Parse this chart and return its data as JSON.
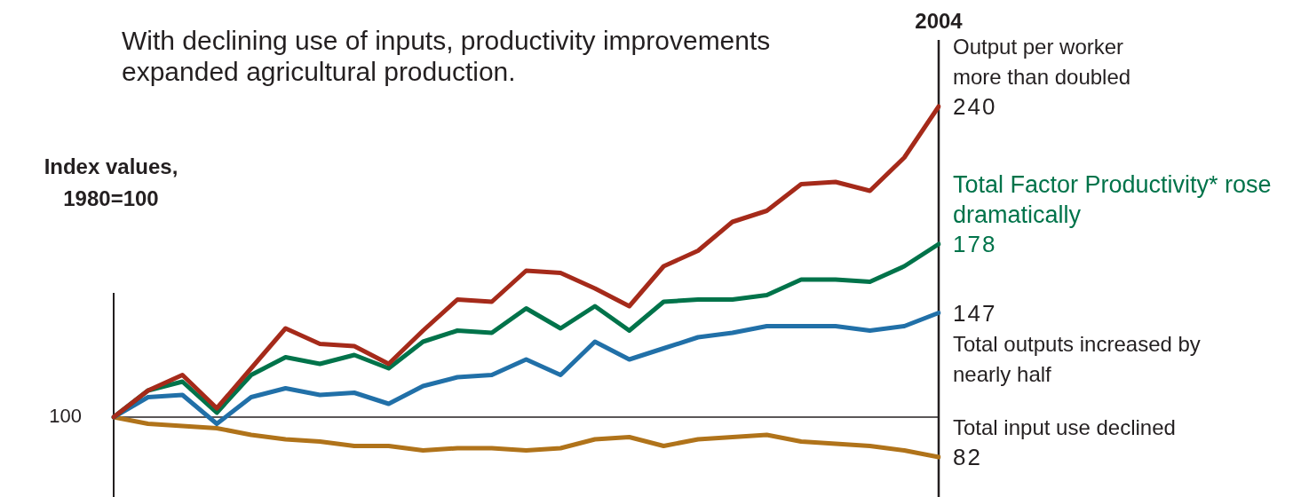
{
  "chart_data": {
    "type": "line",
    "title": "With declining use of inputs, productivity improvements expanded agricultural production.",
    "ylabel": "Index values, 1980=100",
    "categories": [
      null,
      null,
      null,
      null,
      null,
      null,
      null,
      null,
      null,
      null,
      null,
      null,
      null,
      null,
      null,
      null,
      null,
      null,
      null,
      null,
      null,
      null,
      null,
      null,
      null
    ],
    "series": [
      {
        "name": "Output per worker more than doubled",
        "color": "#a52a1a",
        "values": [
          100,
          112,
          119,
          104,
          122,
          140,
          133,
          132,
          124,
          139,
          153,
          152,
          166,
          165,
          158,
          150,
          168,
          175,
          188,
          193,
          205,
          206,
          202,
          217,
          240
        ],
        "value_labels": [
          null,
          null,
          null,
          null,
          null,
          null,
          null,
          null,
          null,
          null,
          null,
          null,
          null,
          null,
          null,
          null,
          null,
          null,
          null,
          null,
          null,
          null,
          null,
          null,
          "240"
        ]
      },
      {
        "name": "Total Factor Productivity* rose dramatically",
        "color": "#00734a",
        "values": [
          100,
          112,
          116,
          102,
          119,
          127,
          124,
          128,
          122,
          134,
          139,
          138,
          149,
          140,
          150,
          139,
          152,
          153,
          153,
          155,
          162,
          162,
          161,
          168,
          178
        ],
        "value_labels": [
          null,
          null,
          null,
          null,
          null,
          null,
          null,
          null,
          null,
          null,
          null,
          null,
          null,
          null,
          null,
          null,
          null,
          null,
          null,
          null,
          null,
          null,
          null,
          null,
          "178"
        ]
      },
      {
        "name": "Total outputs increased by nearly half",
        "color": "#2170a8",
        "values": [
          100,
          109,
          110,
          97,
          109,
          113,
          110,
          111,
          106,
          114,
          118,
          119,
          126,
          119,
          134,
          126,
          131,
          136,
          138,
          141,
          141,
          141,
          139,
          141,
          147
        ],
        "value_labels": [
          null,
          null,
          null,
          null,
          null,
          null,
          null,
          null,
          null,
          null,
          null,
          null,
          null,
          null,
          null,
          null,
          null,
          null,
          null,
          null,
          null,
          null,
          null,
          null,
          "147"
        ]
      },
      {
        "name": "Total input use declined",
        "color": "#b0731a",
        "values": [
          100,
          97,
          96,
          95,
          92,
          90,
          89,
          87,
          87,
          85,
          86,
          86,
          85,
          86,
          90,
          91,
          87,
          90,
          91,
          92,
          89,
          88,
          87,
          85,
          82
        ],
        "value_labels": [
          null,
          null,
          null,
          null,
          null,
          null,
          null,
          null,
          null,
          null,
          null,
          null,
          null,
          null,
          null,
          null,
          null,
          null,
          null,
          null,
          null,
          null,
          null,
          null,
          "82"
        ]
      }
    ],
    "ylim": [
      64,
      270
    ],
    "ref_lines": [
      {
        "axis": "y",
        "value": 100,
        "label": "100"
      }
    ],
    "annotations": [
      "2004"
    ],
    "legend": false,
    "marker": "none"
  }
}
